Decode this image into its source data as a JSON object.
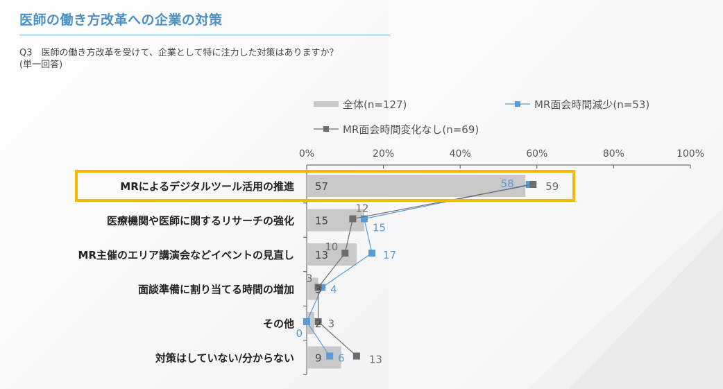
{
  "header": {
    "title": "医師の働き方改革への企業の対策",
    "question_line1": "Q3　医師の働き方改革を受けて、企業として特に注力した対策はありますか？",
    "question_line2": "(単一回答)"
  },
  "colors": {
    "title": "#4a90c4",
    "bar": "#c8c8c8",
    "series_reduced": "#5b9bd5",
    "series_nochange": "#6d6d6d",
    "highlight": "#f5b800",
    "axis": "#555555"
  },
  "chart_data": {
    "type": "bar",
    "orientation": "horizontal",
    "title": "",
    "xlabel": "",
    "ylabel": "",
    "xlim": [
      0,
      100
    ],
    "ticks": [
      "0%",
      "20%",
      "40%",
      "60%",
      "80%",
      "100%"
    ],
    "tick_values": [
      0,
      20,
      40,
      60,
      80,
      100
    ],
    "grid": false,
    "legend_position": "top-right",
    "categories": [
      "MRによるデジタルツール活用の推進",
      "医療機関や医師に関するリサーチの強化",
      "MR主催のエリア講演会などイベントの見直し",
      "面談準備に割り当てる時間の増加",
      "その他",
      "対策はしていない/分からない"
    ],
    "highlighted_category_index": 0,
    "series": [
      {
        "name": "全体(n=127)",
        "kind": "bar",
        "values": [
          57,
          15,
          13,
          3,
          2,
          9
        ]
      },
      {
        "name": "MR面会時間減少(n=53)",
        "kind": "line-marker",
        "values": [
          58,
          15,
          17,
          4,
          0,
          6
        ]
      },
      {
        "name": "MR面会時間変化なし(n=69)",
        "kind": "line-marker",
        "values": [
          59,
          12,
          10,
          3,
          3,
          13
        ]
      }
    ]
  }
}
